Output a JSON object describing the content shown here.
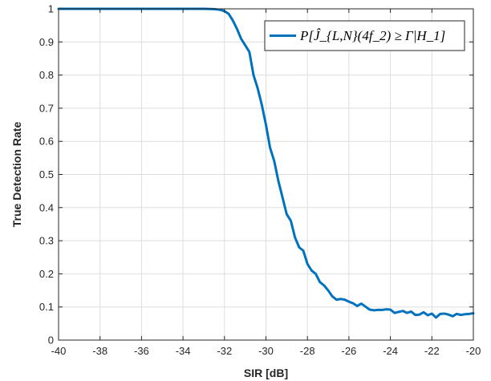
{
  "chart_data": {
    "type": "line",
    "xlabel": "SIR [dB]",
    "ylabel": "True Detection Rate",
    "xlim": [
      -40,
      -20
    ],
    "ylim": [
      0,
      1
    ],
    "xticks": [
      -40,
      -38,
      -36,
      -34,
      -32,
      -30,
      -28,
      -26,
      -24,
      -22,
      -20
    ],
    "yticks": [
      0,
      0.1,
      0.2,
      0.3,
      0.4,
      0.5,
      0.6,
      0.7,
      0.8,
      0.9,
      1
    ],
    "grid": true,
    "legend_position": "top-right",
    "series": [
      {
        "name": "P[Ĵ_{L,N}(4f_2) ≥ Γ|H_1]",
        "color": "#0072BD",
        "x": [
          -40,
          -36,
          -33,
          -32.5,
          -32.2,
          -32,
          -31.8,
          -31.6,
          -31.4,
          -31.2,
          -31,
          -30.8,
          -30.6,
          -30.4,
          -30.2,
          -30,
          -29.8,
          -29.6,
          -29.4,
          -29.2,
          -29,
          -28.8,
          -28.6,
          -28.4,
          -28.2,
          -28,
          -27.8,
          -27.6,
          -27.4,
          -27.2,
          -27,
          -26.8,
          -26.6,
          -26.4,
          -26.2,
          -26,
          -25.8,
          -25.6,
          -25.4,
          -25.2,
          -25,
          -24.8,
          -24.6,
          -24.4,
          -24.2,
          -24,
          -23.8,
          -23.6,
          -23.4,
          -23.2,
          -23,
          -22.8,
          -22.6,
          -22.4,
          -22.2,
          -22,
          -21.8,
          -21.6,
          -21.4,
          -21.2,
          -21,
          -20.8,
          -20.6,
          -20.4,
          -20.2,
          -20
        ],
        "y": [
          1,
          1,
          1,
          0.999,
          0.997,
          0.993,
          0.985,
          0.965,
          0.94,
          0.91,
          0.89,
          0.87,
          0.8,
          0.76,
          0.71,
          0.65,
          0.58,
          0.54,
          0.48,
          0.43,
          0.38,
          0.36,
          0.31,
          0.28,
          0.27,
          0.23,
          0.21,
          0.2,
          0.175,
          0.165,
          0.15,
          0.132,
          0.122,
          0.124,
          0.122,
          0.116,
          0.111,
          0.103,
          0.11,
          0.101,
          0.092,
          0.09,
          0.091,
          0.091,
          0.093,
          0.092,
          0.082,
          0.085,
          0.088,
          0.082,
          0.086,
          0.076,
          0.077,
          0.084,
          0.075,
          0.08,
          0.068,
          0.079,
          0.08,
          0.077,
          0.072,
          0.079,
          0.076,
          0.078,
          0.079,
          0.081
        ]
      }
    ]
  }
}
